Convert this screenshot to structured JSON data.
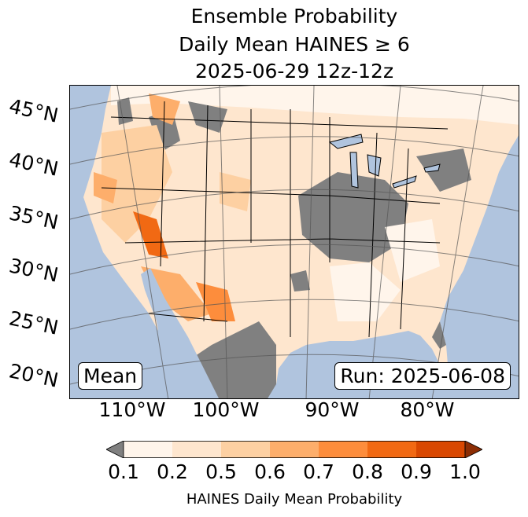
{
  "title": {
    "line1": "Ensemble Probability",
    "line2": "Daily Mean HAINES ≥ 6",
    "line3": "2025-06-29 12z-12z"
  },
  "map": {
    "lat_labels": [
      "45°N",
      "40°N",
      "35°N",
      "30°N",
      "25°N",
      "20°N"
    ],
    "lon_labels": [
      "110°W",
      "100°W",
      "90°W",
      "80°W"
    ],
    "stat_label": "Mean",
    "run_label": "Run: 2025-06-08",
    "colors": {
      "ocean": "#b0c4de",
      "nodata": "#808080"
    }
  },
  "colorbar": {
    "label": "HAINES Daily Mean Probability",
    "ticks": [
      "0.1",
      "0.2",
      "0.5",
      "0.6",
      "0.7",
      "0.8",
      "0.9",
      "1.0"
    ],
    "colors": [
      "#fff5eb",
      "#fee6ce",
      "#fdd0a2",
      "#fdae6b",
      "#fd8d3c",
      "#f16913",
      "#d94801"
    ],
    "under_color": "#808080",
    "over_color": "#8c2d04"
  }
}
